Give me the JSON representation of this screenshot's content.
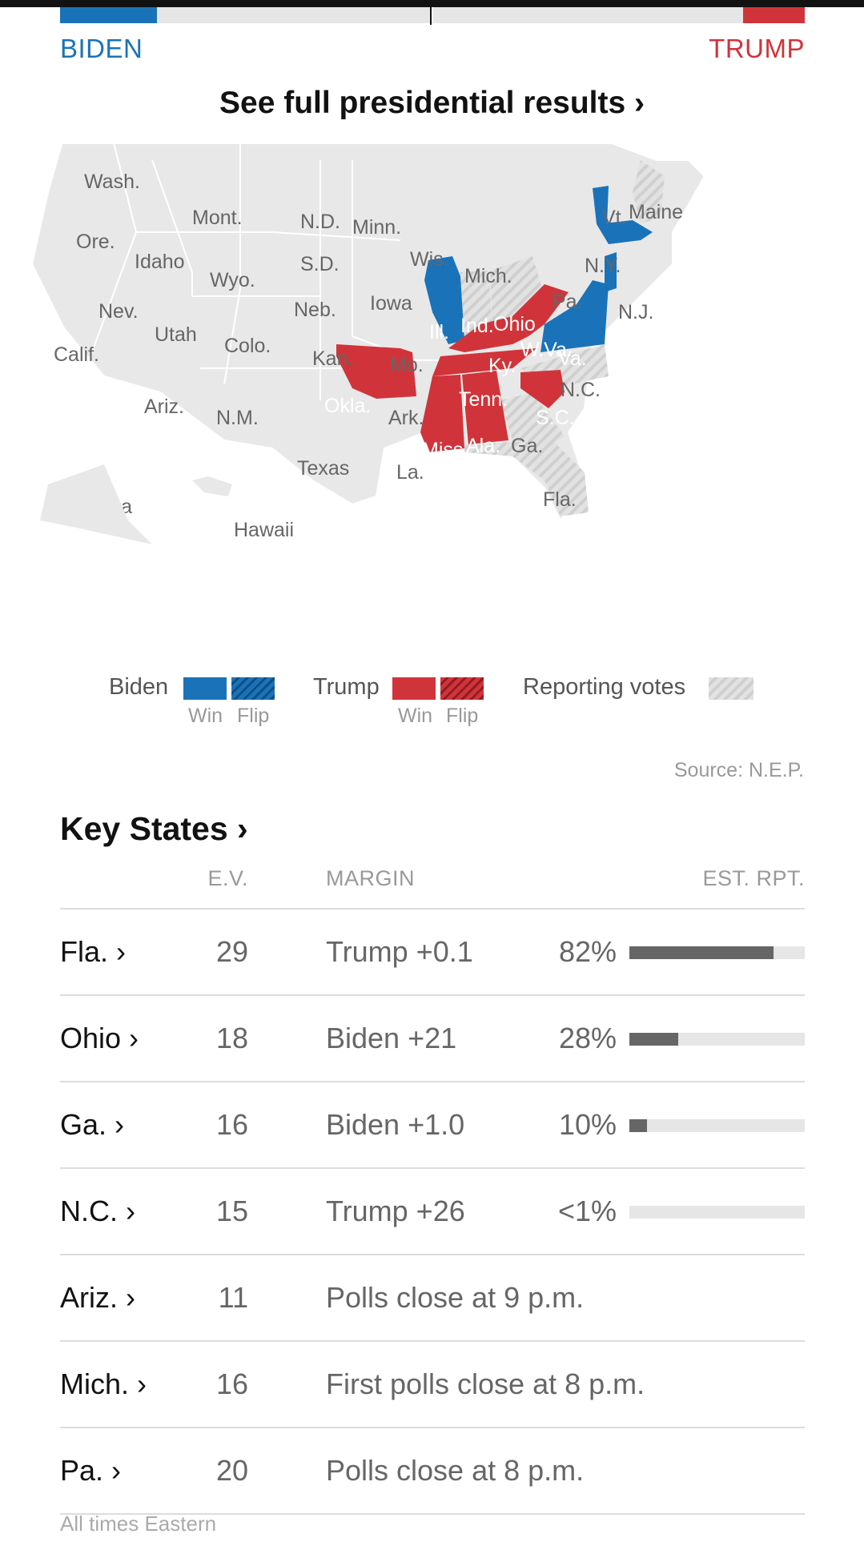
{
  "header": {
    "biden_label": "BIDEN",
    "trump_label": "TRUMP",
    "full_results_link": "See full presidential results ›",
    "biden_share": 0.13,
    "trump_share": 0.083
  },
  "map": {
    "labels": {
      "wash": "Wash.",
      "mont": "Mont.",
      "nd": "N.D.",
      "minn": "Minn.",
      "vt": "Vt.",
      "maine": "Maine",
      "ore": "Ore.",
      "idaho": "Idaho",
      "sd": "S.D.",
      "wis": "Wis.",
      "wyo": "Wyo.",
      "mich": "Mich.",
      "ny": "N.Y.",
      "nev": "Nev.",
      "neb": "Neb.",
      "iowa": "Iowa",
      "pa": "Pa.",
      "nj": "N.J.",
      "utah": "Utah",
      "ill": "Ill.",
      "ind": "Ind.",
      "ohio": "Ohio",
      "calif": "Calif.",
      "colo": "Colo.",
      "kan": "Kan.",
      "mo": "Mo.",
      "ky": "Ky.",
      "wva": "W.Va.",
      "va": "Va.",
      "nc": "N.C.",
      "ariz": "Ariz.",
      "okla": "Okla.",
      "tenn": "Tenn.",
      "nm": "N.M.",
      "ark": "Ark.",
      "sc": "S.C.",
      "miss": "Miss.",
      "ala": "Ala.",
      "ga": "Ga.",
      "texas": "Texas",
      "la": "La.",
      "fla": "Fla.",
      "alaska": "Alaska",
      "hawaii": "Hawaii"
    }
  },
  "legend": {
    "biden": "Biden",
    "trump": "Trump",
    "reporting": "Reporting votes",
    "win": "Win",
    "flip": "Flip"
  },
  "source": "Source: N.E.P.",
  "key_states": {
    "title": "Key States ›",
    "headers": {
      "ev": "E.V.",
      "margin": "MARGIN",
      "rpt": "EST. RPT."
    },
    "rows": [
      {
        "state": "Fla. ›",
        "ev": "29",
        "margin": "Trump +0.1",
        "pct": "82%",
        "fill": 0.82
      },
      {
        "state": "Ohio ›",
        "ev": "18",
        "margin": "Biden +21",
        "pct": "28%",
        "fill": 0.28
      },
      {
        "state": "Ga. ›",
        "ev": "16",
        "margin": "Biden +1.0",
        "pct": "10%",
        "fill": 0.1
      },
      {
        "state": "N.C. ›",
        "ev": "15",
        "margin": "Trump +26",
        "pct": "<1%",
        "fill": 0.0
      },
      {
        "state": "Ariz. ›",
        "ev": "11",
        "margin": "Polls close at 9 p.m."
      },
      {
        "state": "Mich. ›",
        "ev": "16",
        "margin": "First polls close at 8 p.m."
      },
      {
        "state": "Pa. ›",
        "ev": "20",
        "margin": "Polls close at 8 p.m."
      }
    ],
    "footnote": "All times Eastern"
  },
  "colors": {
    "biden": "#1a73b9",
    "trump": "#d0343a",
    "none": "#e6e6e6"
  }
}
